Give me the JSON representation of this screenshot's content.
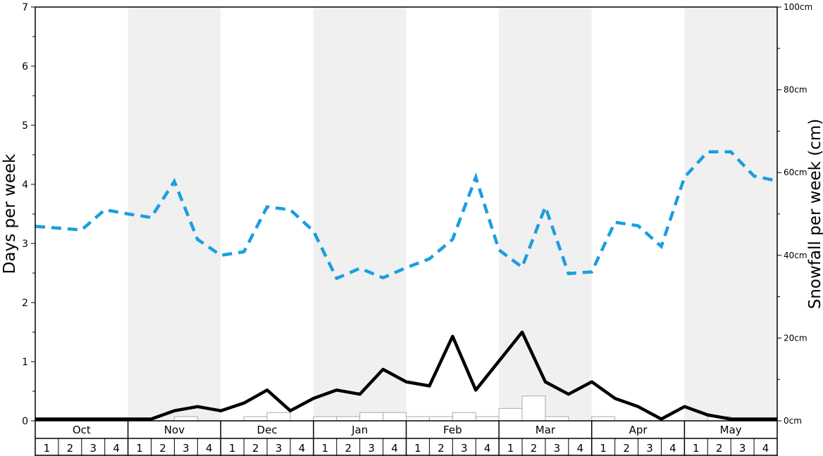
{
  "chart_data": {
    "type": "line",
    "xlabel": "",
    "ylabel_left": "Days per week",
    "ylabel_right": "Snowfall per week (cm)",
    "ylim_left": [
      0,
      7
    ],
    "ylim_right": [
      0,
      100
    ],
    "left_ticks": [
      "0",
      "1",
      "2",
      "3",
      "4",
      "5",
      "6",
      "7"
    ],
    "right_ticks": [
      "0cm",
      "20cm",
      "40cm",
      "60cm",
      "80cm",
      "100cm"
    ],
    "months": [
      "Oct",
      "Nov",
      "Dec",
      "Jan",
      "Feb",
      "Mar",
      "Apr",
      "May"
    ],
    "weeks": [
      "1",
      "2",
      "3",
      "4"
    ],
    "grid": false,
    "legend": "none",
    "colors": {
      "dashed_line": "#1a9ee0",
      "solid_line": "#000000",
      "bars_fill": "#ffffff",
      "bars_stroke": "#aaaaaa",
      "band_shade": "#f0f0f0"
    },
    "series": [
      {
        "style": "dashed-blue",
        "axis": "left",
        "values": [
          3.29,
          3.26,
          3.23,
          3.57,
          3.5,
          3.44,
          4.05,
          3.07,
          2.8,
          2.86,
          3.62,
          3.57,
          3.21,
          2.41,
          2.58,
          2.42,
          2.59,
          2.74,
          3.07,
          4.12,
          2.89,
          2.6,
          3.62,
          2.49,
          2.52,
          3.36,
          3.3,
          2.95,
          4.12,
          4.55,
          4.55,
          4.14,
          4.06
        ]
      },
      {
        "style": "solid-black",
        "axis": "left",
        "values": [
          0.03,
          0.03,
          0.03,
          0.03,
          0.03,
          0.03,
          0.17,
          0.24,
          0.17,
          0.3,
          0.52,
          0.17,
          0.38,
          0.52,
          0.45,
          0.87,
          0.66,
          0.59,
          1.43,
          0.52,
          1.01,
          1.5,
          0.66,
          0.45,
          0.66,
          0.38,
          0.24,
          0.03,
          0.24,
          0.1,
          0.03,
          0.03,
          0.03
        ]
      },
      {
        "style": "bars",
        "axis": "left",
        "values": [
          0,
          0,
          0,
          0,
          0,
          0.07,
          0,
          0,
          0.07,
          0.14,
          0,
          0.07,
          0.07,
          0.14,
          0.14,
          0.07,
          0.07,
          0.14,
          0.07,
          0.21,
          0.42,
          0.07,
          0,
          0.07,
          0,
          0,
          0,
          0,
          0.07,
          0,
          0,
          0
        ]
      }
    ]
  }
}
